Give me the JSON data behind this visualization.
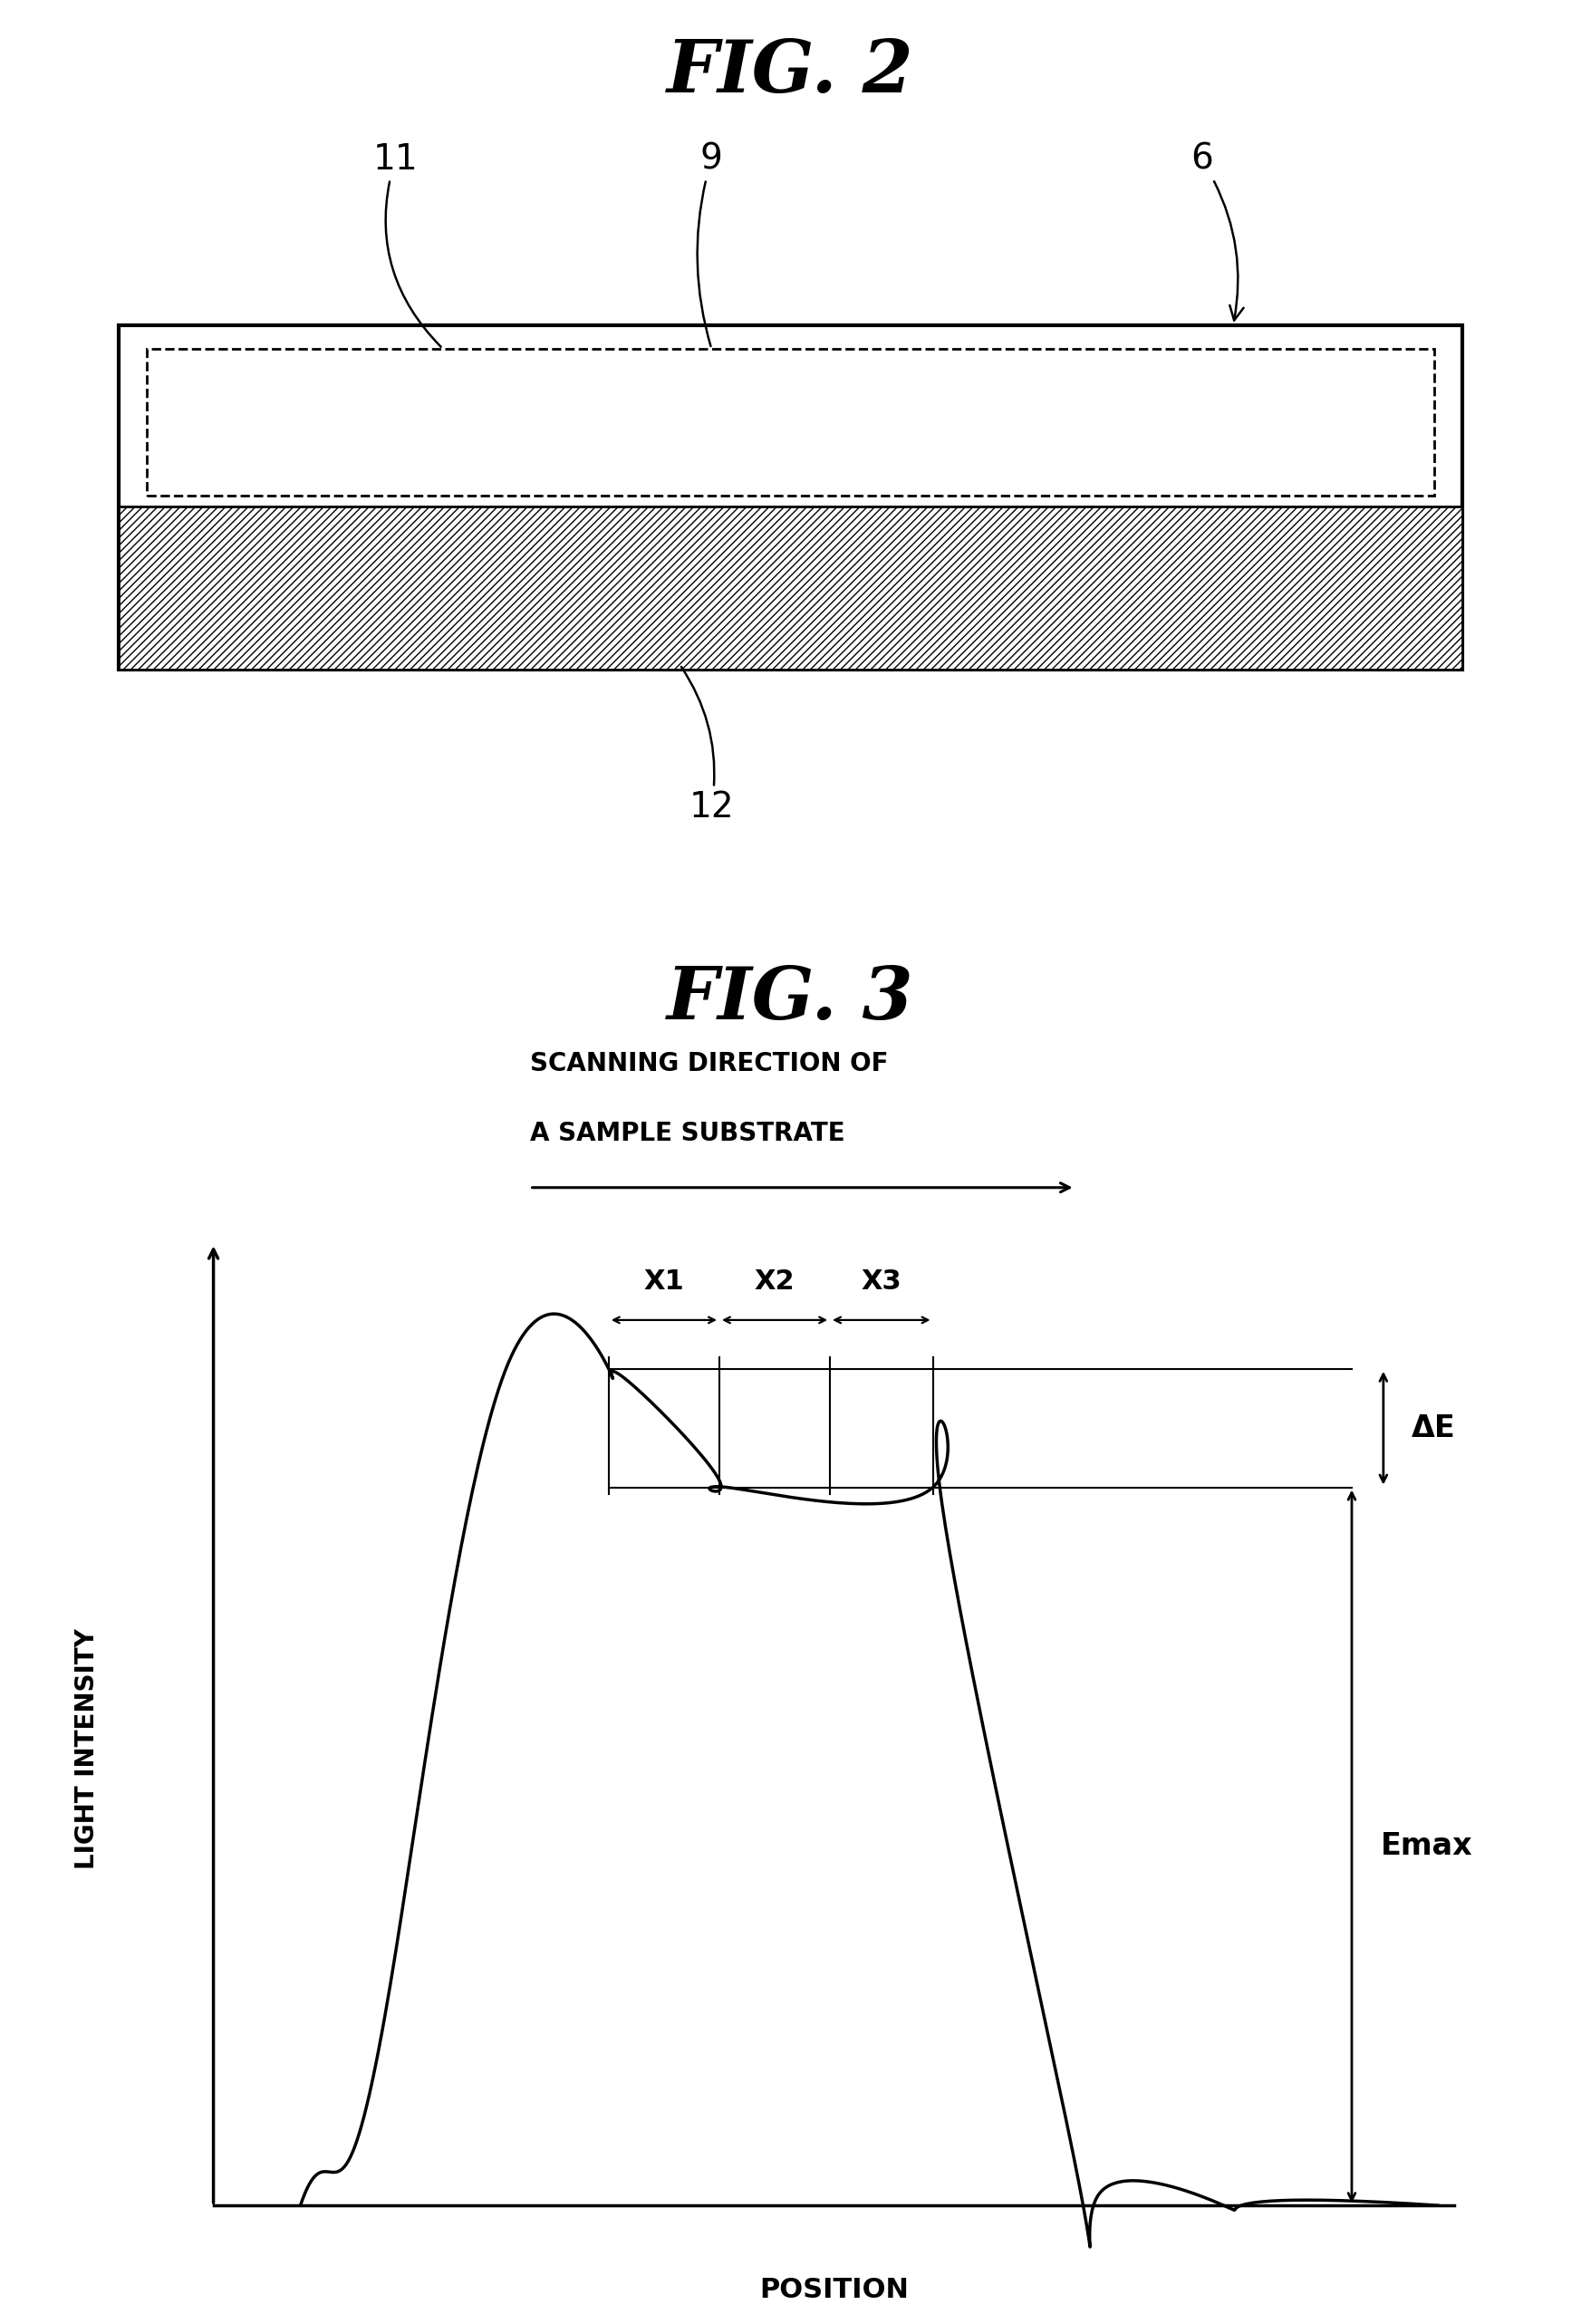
{
  "fig2_title": "FIG. 2",
  "fig3_title": "FIG. 3",
  "label_11": "11",
  "label_9": "9",
  "label_6": "6",
  "label_12": "12",
  "scanning_text_line1": "SCANNING DIRECTION OF",
  "scanning_text_line2": "A SAMPLE SUBSTRATE",
  "xlabel": "POSITION",
  "ylabel": "LIGHT INTENSITY",
  "x1_label": "X1",
  "x2_label": "X2",
  "x3_label": "X3",
  "delta_e_label": "ΔE",
  "emax_label": "Emax",
  "bg_color": "#ffffff",
  "line_color": "#000000"
}
